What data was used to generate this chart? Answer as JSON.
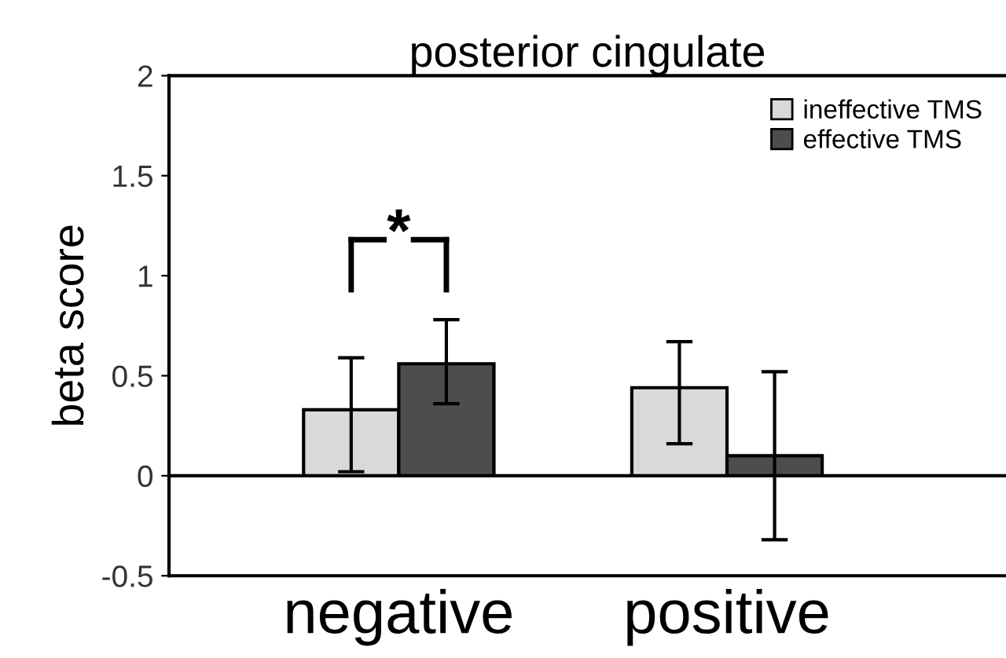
{
  "chart_data": {
    "type": "bar",
    "title": "posterior cingulate",
    "ylabel": "beta score",
    "categories": [
      "negative",
      "positive"
    ],
    "series": [
      {
        "name": "ineffective TMS",
        "color": "#d9d9d9",
        "values": [
          0.33,
          0.44
        ],
        "errors": [
          [
            0.02,
            0.59
          ],
          [
            0.16,
            0.67
          ]
        ]
      },
      {
        "name": "effective TMS",
        "color": "#4d4d4d",
        "values": [
          0.56,
          0.1
        ],
        "errors": [
          [
            0.36,
            0.78
          ],
          [
            -0.32,
            0.52
          ]
        ]
      }
    ],
    "ylim": [
      -0.5,
      2
    ],
    "yticks": [
      {
        "value": -0.5,
        "label": "-0.5"
      },
      0,
      0.5,
      1,
      1.5,
      2
    ],
    "ref_lines": [
      {
        "axis": "y",
        "value": 0,
        "label": null,
        "color": "#000000"
      }
    ],
    "annotations": [
      "*"
    ],
    "legend": "top right",
    "grid": false
  }
}
